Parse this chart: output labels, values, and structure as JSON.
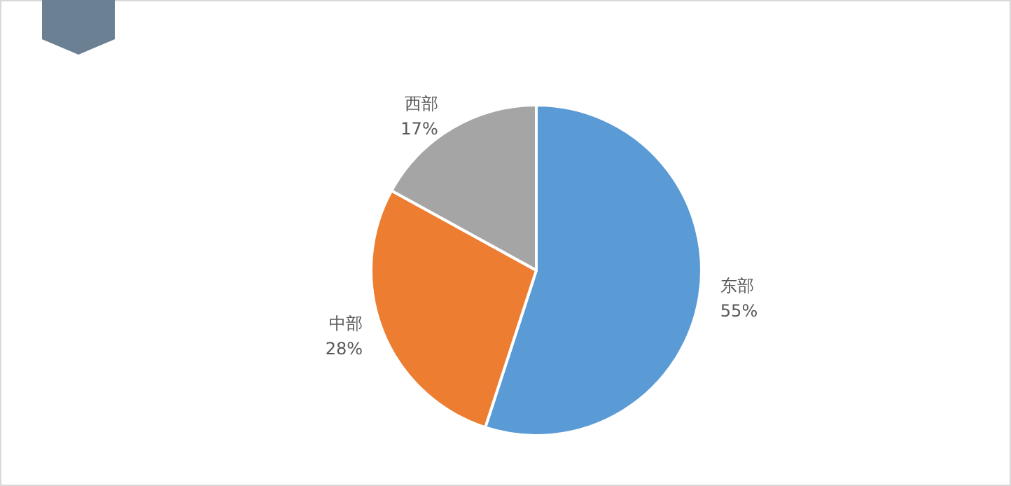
{
  "chart_data": {
    "type": "pie",
    "categories": [
      "东部",
      "中部",
      "西部"
    ],
    "values": [
      55,
      28,
      17
    ],
    "colors": [
      "#5b9bd5",
      "#ed7d31",
      "#a5a5a5"
    ],
    "value_labels": [
      "55%",
      "28%",
      "17%"
    ]
  }
}
